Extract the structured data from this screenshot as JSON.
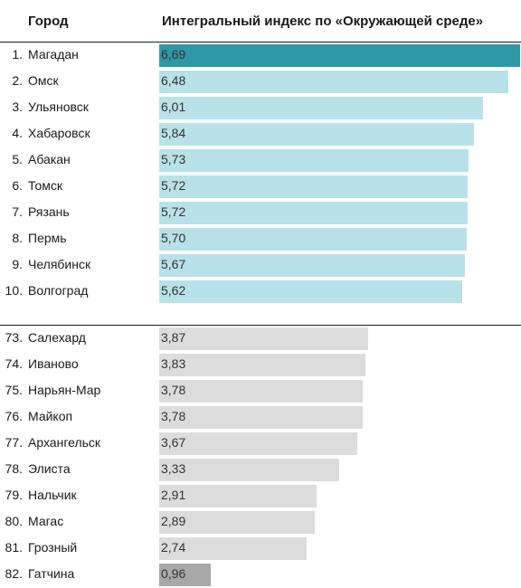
{
  "headers": {
    "city": "Город",
    "index": "Интегральный индекс по «Окружающей среде»"
  },
  "colors": {
    "top_highlight": "#2f98a7",
    "top": "#b8e2e8",
    "bottom": "#dcdcdc",
    "bottom_highlight": "#a8a8a8"
  },
  "chart_data": {
    "type": "bar",
    "orientation": "horizontal",
    "title": "",
    "xlabel": "Интегральный индекс по «Окружающей среде»",
    "ylabel": "Город",
    "xlim": [
      0,
      6.69
    ],
    "groups": [
      {
        "name": "top",
        "rows": [
          {
            "rank": "1.",
            "city": "Магадан",
            "value": 6.69,
            "label": "6,69",
            "highlight": true
          },
          {
            "rank": "2.",
            "city": "Омск",
            "value": 6.48,
            "label": "6,48"
          },
          {
            "rank": "3.",
            "city": "Ульяновск",
            "value": 6.01,
            "label": "6,01"
          },
          {
            "rank": "4.",
            "city": "Хабаровск",
            "value": 5.84,
            "label": "5,84"
          },
          {
            "rank": "5.",
            "city": "Абакан",
            "value": 5.73,
            "label": "5,73"
          },
          {
            "rank": "6.",
            "city": "Томск",
            "value": 5.72,
            "label": "5,72"
          },
          {
            "rank": "7.",
            "city": "Рязань",
            "value": 5.72,
            "label": "5,72"
          },
          {
            "rank": "8.",
            "city": "Пермь",
            "value": 5.7,
            "label": "5,70"
          },
          {
            "rank": "9.",
            "city": "Челябинск",
            "value": 5.67,
            "label": "5,67"
          },
          {
            "rank": "10.",
            "city": "Волгоград",
            "value": 5.62,
            "label": "5,62"
          }
        ]
      },
      {
        "name": "bottom",
        "rows": [
          {
            "rank": "73.",
            "city": "Салехард",
            "value": 3.87,
            "label": "3,87"
          },
          {
            "rank": "74.",
            "city": "Иваново",
            "value": 3.83,
            "label": "3,83"
          },
          {
            "rank": "75.",
            "city": "Нарьян-Мар",
            "value": 3.78,
            "label": "3,78"
          },
          {
            "rank": "76.",
            "city": "Майкоп",
            "value": 3.78,
            "label": "3,78"
          },
          {
            "rank": "77.",
            "city": "Архангельск",
            "value": 3.67,
            "label": "3,67"
          },
          {
            "rank": "78.",
            "city": "Элиста",
            "value": 3.33,
            "label": "3,33"
          },
          {
            "rank": "79.",
            "city": "Нальчик",
            "value": 2.91,
            "label": "2,91"
          },
          {
            "rank": "80.",
            "city": "Магас",
            "value": 2.89,
            "label": "2,89"
          },
          {
            "rank": "81.",
            "city": "Грозный",
            "value": 2.74,
            "label": "2,74"
          },
          {
            "rank": "82.",
            "city": "Гатчина",
            "value": 0.96,
            "label": "0,96",
            "highlight": true
          }
        ]
      }
    ]
  }
}
